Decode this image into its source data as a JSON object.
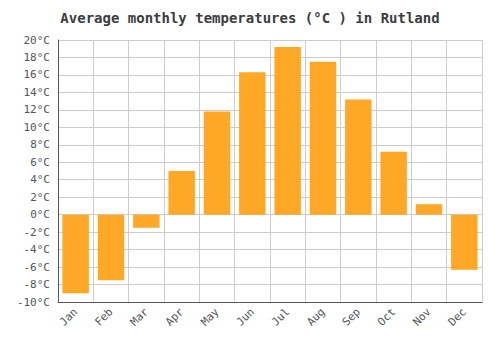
{
  "chart_data": {
    "type": "bar",
    "title": "Average monthly temperatures (°C ) in Rutland",
    "categories": [
      "Jan",
      "Feb",
      "Mar",
      "Apr",
      "May",
      "Jun",
      "Jul",
      "Aug",
      "Sep",
      "Oct",
      "Nov",
      "Dec"
    ],
    "values": [
      -9.0,
      -7.5,
      -1.5,
      5.0,
      11.8,
      16.3,
      19.2,
      17.5,
      13.2,
      7.2,
      1.2,
      -6.3
    ],
    "color": "#FFA828",
    "ylim": [
      -10,
      20
    ],
    "yticks": [
      {
        "value": -10,
        "label": "-10°C"
      },
      {
        "value": -8,
        "label": "-8°C"
      },
      {
        "value": -6,
        "label": "-6°C"
      },
      {
        "value": -4,
        "label": "-4°C"
      },
      {
        "value": -2,
        "label": "-2°C"
      },
      {
        "value": 0,
        "label": "0°C"
      },
      {
        "value": 2,
        "label": "2°C"
      },
      {
        "value": 4,
        "label": "4°C"
      },
      {
        "value": 6,
        "label": "6°C"
      },
      {
        "value": 8,
        "label": "8°C"
      },
      {
        "value": 10,
        "label": "10°C"
      },
      {
        "value": 12,
        "label": "12°C"
      },
      {
        "value": 14,
        "label": "14°C"
      },
      {
        "value": 16,
        "label": "16°C"
      },
      {
        "value": 18,
        "label": "18°C"
      },
      {
        "value": 20,
        "label": "20°C"
      }
    ],
    "grid": true
  }
}
